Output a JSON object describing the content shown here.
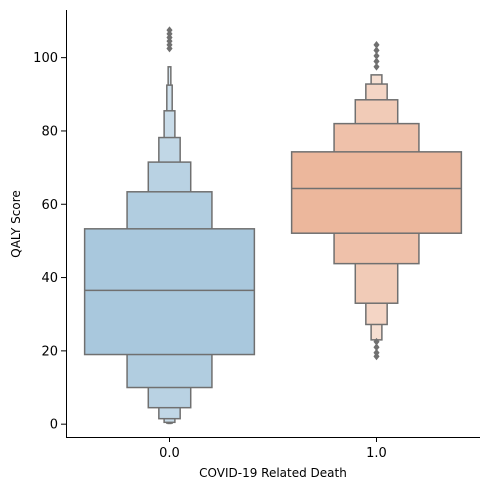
{
  "chart_data": {
    "type": "boxen",
    "xlabel": "COVID-19 Related Death",
    "ylabel": "QALY Score",
    "categories": [
      "0.0",
      "1.0"
    ],
    "ylim": [
      -3.5,
      113
    ],
    "yticks": [
      0,
      20,
      40,
      60,
      80,
      100
    ],
    "ytick_labels": [
      "0",
      "20",
      "40",
      "60",
      "80",
      "100"
    ],
    "grid": false,
    "box_edge_color": "#707070",
    "groups": [
      {
        "category": "0.0",
        "base_color": "#a9c8dd",
        "median": 36.5,
        "boxes": [
          {
            "low": 19.0,
            "high": 53.3,
            "width": 0.82
          },
          {
            "low": 10.0,
            "high": 63.4,
            "width": 0.41
          },
          {
            "low": 4.5,
            "high": 71.5,
            "width": 0.205
          },
          {
            "low": 1.5,
            "high": 78.2,
            "width": 0.103
          },
          {
            "low": 0.5,
            "high": 85.5,
            "width": 0.052
          },
          {
            "low": 0.3,
            "high": 92.5,
            "width": 0.026
          },
          {
            "low": 0.2,
            "high": 97.5,
            "width": 0.013
          }
        ],
        "outliers": [
          102.5,
          103.5,
          104.5,
          105.5,
          106.5,
          107.5
        ]
      },
      {
        "category": "1.0",
        "base_color": "#ecb79c",
        "median": 64.3,
        "boxes": [
          {
            "low": 52.1,
            "high": 74.3,
            "width": 0.82
          },
          {
            "low": 43.8,
            "high": 82.0,
            "width": 0.41
          },
          {
            "low": 33.0,
            "high": 88.5,
            "width": 0.205
          },
          {
            "low": 27.2,
            "high": 92.8,
            "width": 0.103
          },
          {
            "low": 23.0,
            "high": 95.3,
            "width": 0.052
          }
        ],
        "outliers": [
          18.5,
          19.5,
          21.0,
          22.5,
          97.5,
          99.0,
          100.5,
          102.0,
          103.5
        ]
      }
    ]
  }
}
